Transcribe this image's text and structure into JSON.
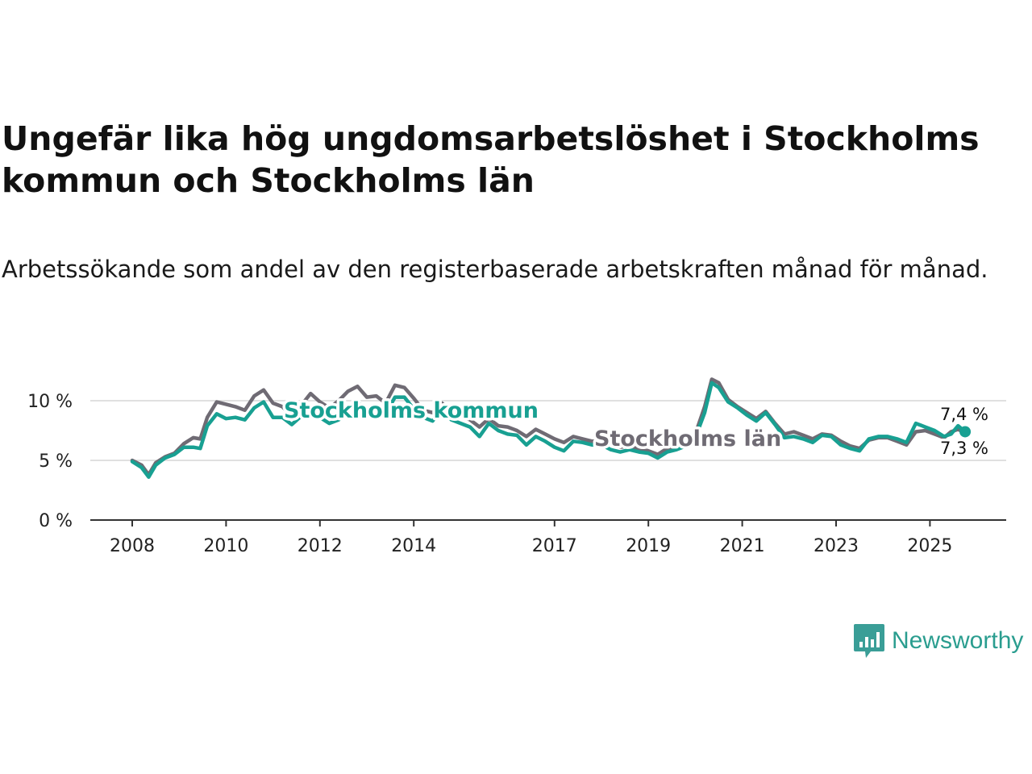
{
  "title": "Ungefär lika hög ungdomsarbetslöshet i Stockholms kommun och Stockholms län",
  "subtitle": "Arbetssökande som andel av den registerbaserade arbetskraften månad för månad.",
  "brand": {
    "name": "Newsworthy",
    "icon": "newsworthy-logo-icon",
    "color": "#3a9e97"
  },
  "chart_data": {
    "type": "line",
    "title": "Ungefär lika hög ungdomsarbetslöshet i Stockholms kommun och Stockholms län",
    "xlabel": "",
    "ylabel": "",
    "xlim": [
      2008,
      2026.2
    ],
    "ylim": [
      0,
      12.5
    ],
    "y_ticks": [
      {
        "value": 0,
        "label": "0 %"
      },
      {
        "value": 5,
        "label": "5 %"
      },
      {
        "value": 10,
        "label": "10 %"
      }
    ],
    "x_ticks": [
      {
        "value": 2008,
        "label": "2008"
      },
      {
        "value": 2010,
        "label": "2010"
      },
      {
        "value": 2012,
        "label": "2012"
      },
      {
        "value": 2014,
        "label": "2014"
      },
      {
        "value": 2017,
        "label": "2017"
      },
      {
        "value": 2019,
        "label": "2019"
      },
      {
        "value": 2021,
        "label": "2021"
      },
      {
        "value": 2023,
        "label": "2023"
      },
      {
        "value": 2025,
        "label": "2025"
      }
    ],
    "grid": true,
    "series": [
      {
        "name": "Stockholms län",
        "color": "#6f6b74",
        "label": "Stockholms län",
        "end_label": "7,3 %",
        "points": [
          [
            2008.0,
            5.0
          ],
          [
            2008.2,
            4.6
          ],
          [
            2008.35,
            3.8
          ],
          [
            2008.5,
            4.8
          ],
          [
            2008.7,
            5.3
          ],
          [
            2008.9,
            5.6
          ],
          [
            2009.1,
            6.4
          ],
          [
            2009.3,
            6.9
          ],
          [
            2009.45,
            6.8
          ],
          [
            2009.6,
            8.6
          ],
          [
            2009.8,
            9.9
          ],
          [
            2010.0,
            9.7
          ],
          [
            2010.2,
            9.5
          ],
          [
            2010.4,
            9.2
          ],
          [
            2010.6,
            10.4
          ],
          [
            2010.8,
            10.9
          ],
          [
            2011.0,
            9.8
          ],
          [
            2011.2,
            9.5
          ],
          [
            2011.4,
            8.7
          ],
          [
            2011.6,
            9.6
          ],
          [
            2011.8,
            10.6
          ],
          [
            2012.0,
            9.9
          ],
          [
            2012.2,
            9.4
          ],
          [
            2012.4,
            10.0
          ],
          [
            2012.6,
            10.8
          ],
          [
            2012.8,
            11.2
          ],
          [
            2013.0,
            10.3
          ],
          [
            2013.2,
            10.4
          ],
          [
            2013.4,
            9.8
          ],
          [
            2013.6,
            11.3
          ],
          [
            2013.8,
            11.1
          ],
          [
            2014.0,
            10.2
          ],
          [
            2014.2,
            9.2
          ],
          [
            2014.4,
            9.0
          ],
          [
            2014.6,
            9.8
          ],
          [
            2014.8,
            9.0
          ],
          [
            2015.0,
            8.7
          ],
          [
            2015.2,
            8.4
          ],
          [
            2015.4,
            7.8
          ],
          [
            2015.6,
            8.5
          ],
          [
            2015.8,
            7.9
          ],
          [
            2016.0,
            7.8
          ],
          [
            2016.2,
            7.5
          ],
          [
            2016.4,
            7.0
          ],
          [
            2016.6,
            7.6
          ],
          [
            2016.8,
            7.2
          ],
          [
            2017.0,
            6.8
          ],
          [
            2017.2,
            6.5
          ],
          [
            2017.4,
            7.0
          ],
          [
            2017.6,
            6.8
          ],
          [
            2017.8,
            6.6
          ],
          [
            2018.0,
            6.6
          ],
          [
            2018.2,
            6.4
          ],
          [
            2018.4,
            6.1
          ],
          [
            2018.6,
            6.2
          ],
          [
            2018.8,
            6.0
          ],
          [
            2019.0,
            5.8
          ],
          [
            2019.2,
            5.5
          ],
          [
            2019.4,
            6.0
          ],
          [
            2019.6,
            6.2
          ],
          [
            2019.8,
            6.6
          ],
          [
            2020.0,
            7.2
          ],
          [
            2020.2,
            9.5
          ],
          [
            2020.35,
            11.8
          ],
          [
            2020.5,
            11.5
          ],
          [
            2020.7,
            10.1
          ],
          [
            2020.9,
            9.5
          ],
          [
            2021.1,
            9.0
          ],
          [
            2021.3,
            8.5
          ],
          [
            2021.5,
            9.1
          ],
          [
            2021.7,
            8.1
          ],
          [
            2021.9,
            7.2
          ],
          [
            2022.1,
            7.4
          ],
          [
            2022.3,
            7.1
          ],
          [
            2022.5,
            6.8
          ],
          [
            2022.7,
            7.2
          ],
          [
            2022.9,
            7.1
          ],
          [
            2023.1,
            6.6
          ],
          [
            2023.3,
            6.2
          ],
          [
            2023.5,
            6.0
          ],
          [
            2023.7,
            6.7
          ],
          [
            2023.9,
            6.9
          ],
          [
            2024.1,
            6.9
          ],
          [
            2024.3,
            6.6
          ],
          [
            2024.5,
            6.3
          ],
          [
            2024.7,
            7.4
          ],
          [
            2024.9,
            7.5
          ],
          [
            2025.1,
            7.2
          ],
          [
            2025.3,
            6.9
          ],
          [
            2025.45,
            7.4
          ],
          [
            2025.6,
            7.6
          ],
          [
            2025.75,
            7.3
          ]
        ]
      },
      {
        "name": "Stockholms kommun",
        "color": "#18a092",
        "label": "Stockholms kommun",
        "end_label": "7,4 %",
        "points": [
          [
            2008.0,
            4.9
          ],
          [
            2008.2,
            4.4
          ],
          [
            2008.35,
            3.6
          ],
          [
            2008.5,
            4.6
          ],
          [
            2008.7,
            5.2
          ],
          [
            2008.9,
            5.5
          ],
          [
            2009.1,
            6.1
          ],
          [
            2009.3,
            6.1
          ],
          [
            2009.45,
            6.0
          ],
          [
            2009.6,
            7.9
          ],
          [
            2009.8,
            8.9
          ],
          [
            2010.0,
            8.5
          ],
          [
            2010.2,
            8.6
          ],
          [
            2010.4,
            8.4
          ],
          [
            2010.6,
            9.4
          ],
          [
            2010.8,
            9.9
          ],
          [
            2011.0,
            8.6
          ],
          [
            2011.2,
            8.6
          ],
          [
            2011.4,
            8.0
          ],
          [
            2011.6,
            8.7
          ],
          [
            2011.8,
            9.5
          ],
          [
            2012.0,
            8.6
          ],
          [
            2012.2,
            8.1
          ],
          [
            2012.4,
            8.4
          ],
          [
            2012.6,
            9.3
          ],
          [
            2012.8,
            9.9
          ],
          [
            2013.0,
            9.1
          ],
          [
            2013.2,
            9.3
          ],
          [
            2013.4,
            8.9
          ],
          [
            2013.6,
            10.3
          ],
          [
            2013.8,
            10.3
          ],
          [
            2014.0,
            9.3
          ],
          [
            2014.2,
            8.6
          ],
          [
            2014.4,
            8.3
          ],
          [
            2014.6,
            9.3
          ],
          [
            2014.8,
            8.4
          ],
          [
            2015.0,
            8.1
          ],
          [
            2015.2,
            7.8
          ],
          [
            2015.4,
            7.0
          ],
          [
            2015.6,
            8.1
          ],
          [
            2015.8,
            7.5
          ],
          [
            2016.0,
            7.2
          ],
          [
            2016.2,
            7.1
          ],
          [
            2016.4,
            6.3
          ],
          [
            2016.6,
            7.0
          ],
          [
            2016.8,
            6.6
          ],
          [
            2017.0,
            6.1
          ],
          [
            2017.2,
            5.8
          ],
          [
            2017.4,
            6.6
          ],
          [
            2017.6,
            6.5
          ],
          [
            2017.8,
            6.3
          ],
          [
            2018.0,
            6.3
          ],
          [
            2018.2,
            5.9
          ],
          [
            2018.4,
            5.7
          ],
          [
            2018.6,
            5.9
          ],
          [
            2018.8,
            5.7
          ],
          [
            2019.0,
            5.6
          ],
          [
            2019.2,
            5.2
          ],
          [
            2019.4,
            5.7
          ],
          [
            2019.6,
            5.9
          ],
          [
            2019.8,
            6.2
          ],
          [
            2020.0,
            6.9
          ],
          [
            2020.2,
            9.0
          ],
          [
            2020.35,
            11.5
          ],
          [
            2020.5,
            11.1
          ],
          [
            2020.7,
            9.9
          ],
          [
            2020.9,
            9.4
          ],
          [
            2021.1,
            8.8
          ],
          [
            2021.3,
            8.3
          ],
          [
            2021.5,
            9.0
          ],
          [
            2021.7,
            8.0
          ],
          [
            2021.9,
            6.9
          ],
          [
            2022.1,
            7.0
          ],
          [
            2022.3,
            6.8
          ],
          [
            2022.5,
            6.5
          ],
          [
            2022.7,
            7.1
          ],
          [
            2022.9,
            7.0
          ],
          [
            2023.1,
            6.3
          ],
          [
            2023.3,
            6.0
          ],
          [
            2023.5,
            5.8
          ],
          [
            2023.7,
            6.8
          ],
          [
            2023.9,
            7.0
          ],
          [
            2024.1,
            7.0
          ],
          [
            2024.3,
            6.8
          ],
          [
            2024.5,
            6.5
          ],
          [
            2024.7,
            8.1
          ],
          [
            2024.9,
            7.8
          ],
          [
            2025.1,
            7.5
          ],
          [
            2025.3,
            7.0
          ],
          [
            2025.45,
            7.2
          ],
          [
            2025.6,
            7.9
          ],
          [
            2025.75,
            7.4
          ]
        ]
      }
    ]
  }
}
